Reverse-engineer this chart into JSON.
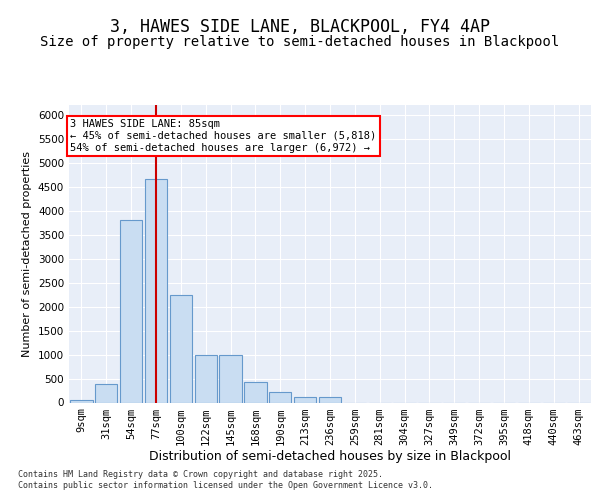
{
  "title1": "3, HAWES SIDE LANE, BLACKPOOL, FY4 4AP",
  "title2": "Size of property relative to semi-detached houses in Blackpool",
  "xlabel": "Distribution of semi-detached houses by size in Blackpool",
  "ylabel": "Number of semi-detached properties",
  "categories": [
    "9sqm",
    "31sqm",
    "54sqm",
    "77sqm",
    "100sqm",
    "122sqm",
    "145sqm",
    "168sqm",
    "190sqm",
    "213sqm",
    "236sqm",
    "259sqm",
    "281sqm",
    "304sqm",
    "327sqm",
    "349sqm",
    "372sqm",
    "395sqm",
    "418sqm",
    "440sqm",
    "463sqm"
  ],
  "values": [
    50,
    390,
    3800,
    4650,
    2250,
    1000,
    1000,
    420,
    210,
    110,
    110,
    0,
    0,
    0,
    0,
    0,
    0,
    0,
    0,
    0,
    0
  ],
  "bar_color": "#c9ddf2",
  "bar_edge_color": "#6699cc",
  "vline_color": "#cc0000",
  "vline_x": 3.0,
  "annotation_line1": "3 HAWES SIDE LANE: 85sqm",
  "annotation_line2": "← 45% of semi-detached houses are smaller (5,818)",
  "annotation_line3": "54% of semi-detached houses are larger (6,972) →",
  "footer1": "Contains HM Land Registry data © Crown copyright and database right 2025.",
  "footer2": "Contains public sector information licensed under the Open Government Licence v3.0.",
  "ylim": [
    0,
    6200
  ],
  "yticks": [
    0,
    500,
    1000,
    1500,
    2000,
    2500,
    3000,
    3500,
    4000,
    4500,
    5000,
    5500,
    6000
  ],
  "bg_color": "#e8eef8",
  "fig_bg": "#ffffff",
  "title1_fontsize": 12,
  "title2_fontsize": 10,
  "ylabel_fontsize": 8,
  "xlabel_fontsize": 9,
  "tick_fontsize": 7.5,
  "annot_fontsize": 7.5,
  "footer_fontsize": 6
}
